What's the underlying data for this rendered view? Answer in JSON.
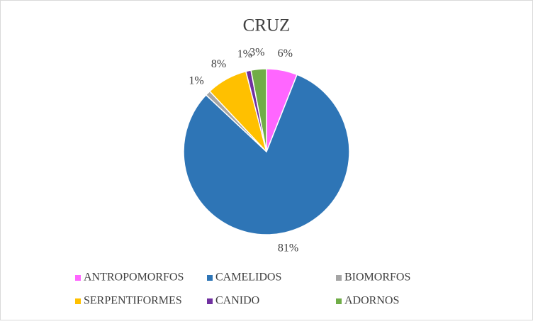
{
  "chart_data": {
    "type": "pie",
    "title": "CRUZ",
    "categories": [
      "ANTROPOMORFOS",
      "CAMELIDOS",
      "BIOMORFOS",
      "SERPENTIFORMES",
      "CANIDO",
      "ADORNOS"
    ],
    "values": [
      6,
      81,
      1,
      8,
      1,
      3
    ],
    "value_labels": [
      "6%",
      "81%",
      "1%",
      "8%",
      "1%",
      "3%"
    ],
    "colors": [
      "#ff66ff",
      "#2e75b6",
      "#a5a5a5",
      "#ffc000",
      "#7030a0",
      "#70ad47"
    ]
  }
}
